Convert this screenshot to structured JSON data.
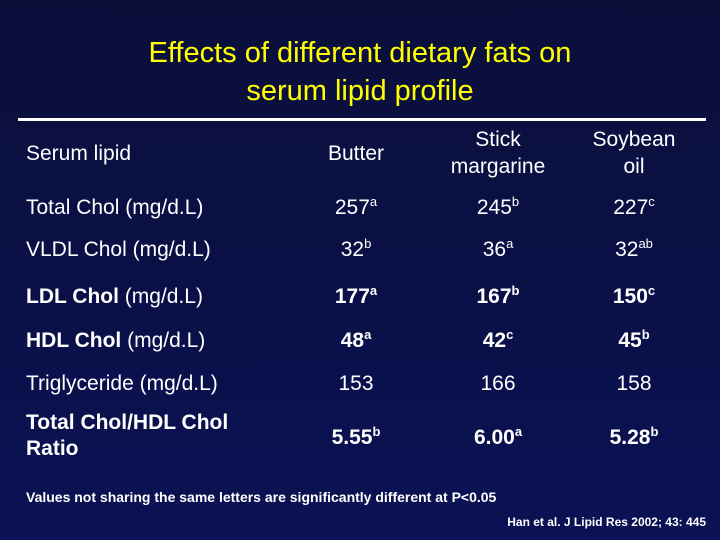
{
  "slide": {
    "title_line1": "Effects of different dietary fats on",
    "title_line2": "serum lipid profile"
  },
  "table": {
    "headers": {
      "serum_lipid": "Serum lipid",
      "butter": "Butter",
      "stick_margarine_line1": "Stick",
      "stick_margarine_line2": "margarine",
      "soybean_oil_line1": "Soybean",
      "soybean_oil_line2": "oil"
    },
    "rows": [
      {
        "label": "Total Chol",
        "unit": " (mg/d.L)",
        "butter": "257",
        "butter_sup": "a",
        "margarine": "245",
        "margarine_sup": "b",
        "soybean": "227",
        "soybean_sup": "c"
      },
      {
        "label": "VLDL Chol",
        "unit": " (mg/d.L)",
        "butter": "32",
        "butter_sup": "b",
        "margarine": "36",
        "margarine_sup": "a",
        "soybean": "32",
        "soybean_sup": "ab"
      },
      {
        "label": "LDL Chol",
        "unit": " (mg/d.L)",
        "butter": "177",
        "butter_sup": "a",
        "margarine": "167",
        "margarine_sup": "b",
        "soybean": "150",
        "soybean_sup": "c"
      },
      {
        "label": "HDL Chol",
        "unit": " (mg/d.L)",
        "butter": "48",
        "butter_sup": "a",
        "margarine": "42",
        "margarine_sup": "c",
        "soybean": "45",
        "soybean_sup": "b"
      },
      {
        "label": "Triglyceride",
        "unit": " (mg/d.L)",
        "butter": "153",
        "butter_sup": "",
        "margarine": "166",
        "margarine_sup": "",
        "soybean": "158",
        "soybean_sup": ""
      },
      {
        "label_line1": "Total Chol/HDL Chol",
        "label_line2": "Ratio",
        "butter": "5.55",
        "butter_sup": "b",
        "margarine": "6.00",
        "margarine_sup": "a",
        "soybean": "5.28",
        "soybean_sup": "b"
      }
    ]
  },
  "footer": {
    "note": "Values not sharing the same letters are significantly different at P<0.05",
    "citation": "Han et al. J Lipid Res 2002; 43: 445"
  },
  "colors": {
    "background": "#0b1048",
    "title": "#ffff00",
    "text": "#ffffff"
  }
}
